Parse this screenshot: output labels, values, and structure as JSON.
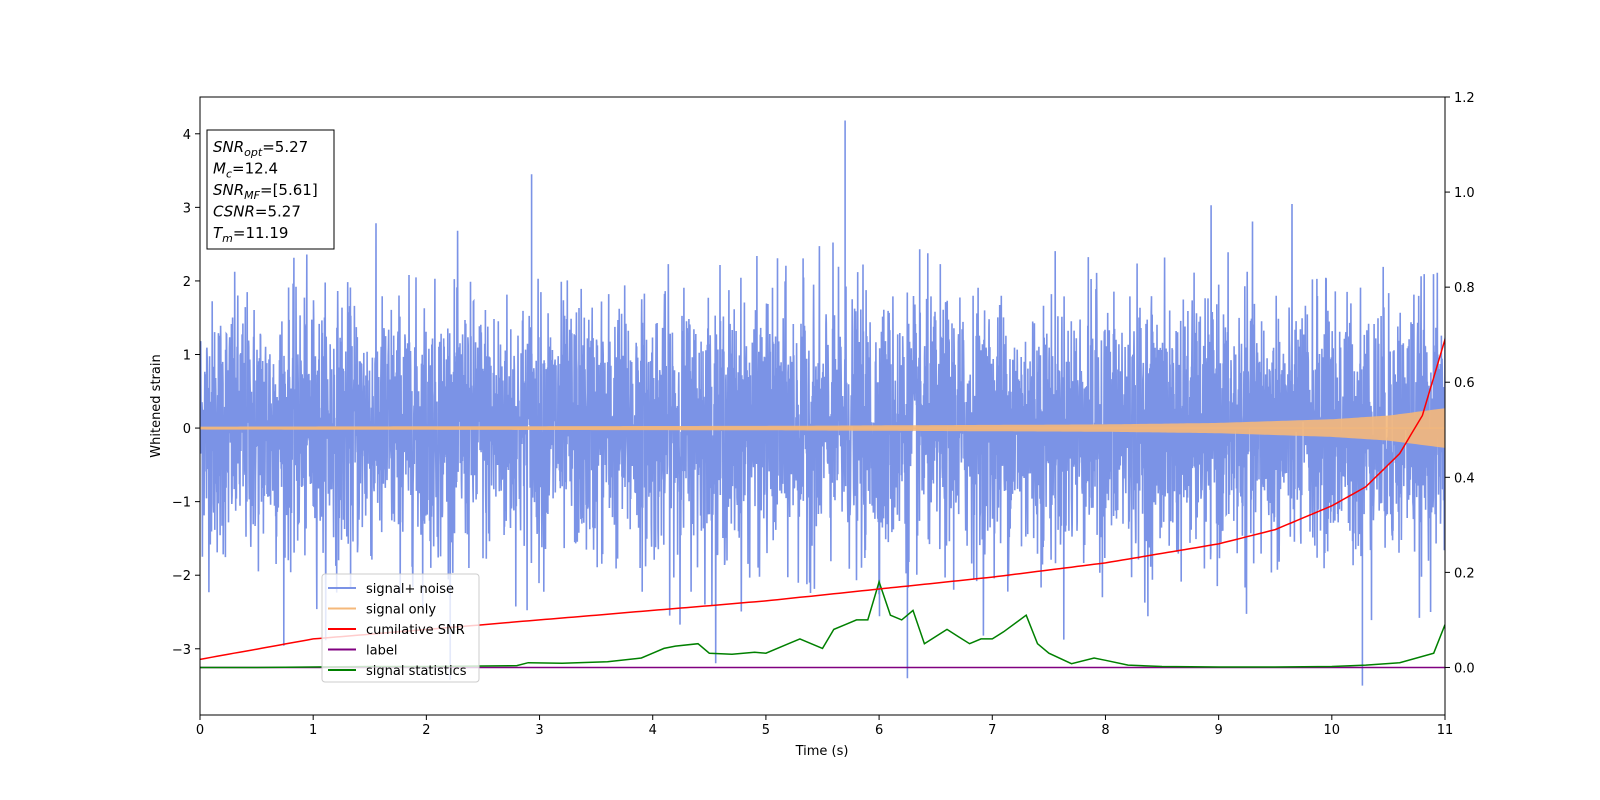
{
  "chart_data": {
    "type": "line",
    "xlabel": "Time (s)",
    "ylabel": "Whitened strain",
    "xlim": [
      0,
      11
    ],
    "ylim_left": [
      -3.9,
      4.5
    ],
    "ylim_right": [
      -0.1,
      1.2
    ],
    "xticks": [
      "0",
      "1",
      "2",
      "3",
      "4",
      "5",
      "6",
      "7",
      "8",
      "9",
      "10",
      "11"
    ],
    "yticks_left": [
      "−3",
      "−2",
      "−1",
      "0",
      "1",
      "2",
      "3",
      "4"
    ],
    "yticks_right": [
      "0.0",
      "0.2",
      "0.4",
      "0.6",
      "0.8",
      "1.0",
      "1.2"
    ],
    "grid": false,
    "legend_position": "lower-left",
    "annotation": {
      "lines": [
        {
          "sym": "SNR",
          "sub": "opt",
          "value": "=5.27"
        },
        {
          "sym": "M",
          "sub": "c",
          "value": "=12.4"
        },
        {
          "sym": "SNR",
          "sub": "MF",
          "value": "=[5.61]"
        },
        {
          "sym": "CSNR",
          "sub": "",
          "value": "=5.27"
        },
        {
          "sym": "T",
          "sub": "m",
          "value": "=11.19"
        }
      ]
    },
    "series": [
      {
        "name": "signal+ noise",
        "axis": "left",
        "color": "#7b93e6",
        "description_values": {
          "mean": 0,
          "std": 0.85,
          "max_spike": 4.18,
          "min_spike": -3.5
        }
      },
      {
        "name": "signal only",
        "axis": "left",
        "color": "#f5b87a",
        "envelope": {
          "x": [
            0,
            5,
            8,
            9,
            10,
            10.5,
            11
          ],
          "amp": [
            0.02,
            0.03,
            0.05,
            0.07,
            0.12,
            0.17,
            0.27
          ]
        }
      },
      {
        "name": "cumilative SNR",
        "axis": "right",
        "color": "#ff0000",
        "x": [
          0,
          1,
          2,
          3,
          4,
          5,
          6,
          7,
          8,
          9,
          9.5,
          10,
          10.3,
          10.6,
          10.8,
          11
        ],
        "values": [
          0.017,
          0.06,
          0.08,
          0.1,
          0.12,
          0.14,
          0.165,
          0.19,
          0.22,
          0.26,
          0.29,
          0.34,
          0.38,
          0.45,
          0.53,
          0.69
        ]
      },
      {
        "name": "label",
        "axis": "right",
        "color": "#800080",
        "x": [
          0,
          11
        ],
        "values": [
          0,
          0
        ]
      },
      {
        "name": "signal statistics",
        "axis": "right",
        "color": "#008000",
        "x": [
          0,
          0.5,
          1,
          1.5,
          2,
          2.5,
          2.8,
          2.9,
          3.2,
          3.6,
          3.9,
          4.0,
          4.1,
          4.2,
          4.4,
          4.5,
          4.7,
          4.9,
          5.0,
          5.2,
          5.3,
          5.4,
          5.5,
          5.6,
          5.7,
          5.8,
          5.9,
          6.0,
          6.1,
          6.2,
          6.3,
          6.4,
          6.6,
          6.7,
          6.8,
          6.9,
          7.0,
          7.1,
          7.3,
          7.4,
          7.5,
          7.7,
          7.9,
          8.0,
          8.2,
          8.5,
          9.0,
          9.5,
          10.0,
          10.3,
          10.6,
          10.9,
          11.0
        ],
        "values": [
          0,
          0,
          0.001,
          0.002,
          0.002,
          0.003,
          0.004,
          0.01,
          0.009,
          0.012,
          0.02,
          0.03,
          0.04,
          0.045,
          0.05,
          0.03,
          0.028,
          0.032,
          0.03,
          0.05,
          0.06,
          0.05,
          0.04,
          0.08,
          0.09,
          0.1,
          0.1,
          0.18,
          0.11,
          0.1,
          0.12,
          0.05,
          0.08,
          0.065,
          0.05,
          0.06,
          0.06,
          0.075,
          0.11,
          0.05,
          0.03,
          0.008,
          0.02,
          0.015,
          0.005,
          0.002,
          0.001,
          0.001,
          0.002,
          0.005,
          0.01,
          0.03,
          0.09
        ]
      }
    ]
  }
}
